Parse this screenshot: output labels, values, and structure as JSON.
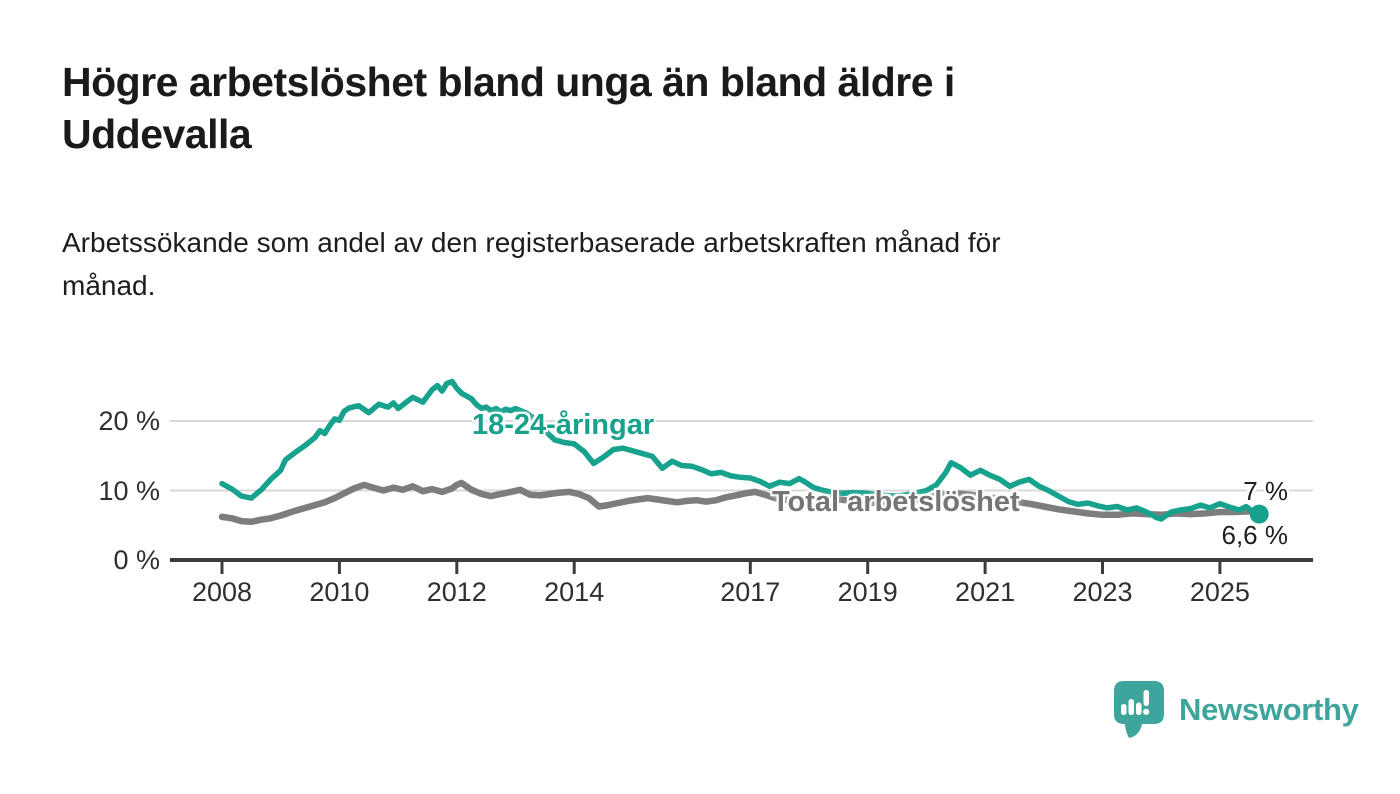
{
  "header": {
    "title": "Högre arbetslöshet bland unga än bland äldre i\nUddevalla",
    "subtitle": "Arbetssökande som andel av den registerbaserade arbetskraften månad för\nmånad."
  },
  "footer": {
    "brand": "Newsworthy",
    "logo_icon": "speech-bubble-bar-chart-icon"
  },
  "colors": {
    "background": "#ffffff",
    "accent_teal": "#17a28e",
    "line_gray": "#7d7d7d",
    "axis": "#3c3c3c",
    "gridline": "#d8d8d8",
    "logo_teal": "#3ea59d",
    "text": "#1a1a1a"
  },
  "chart_data": {
    "type": "line",
    "unit": "%",
    "x_axis": {
      "range": [
        2007.1,
        2026.6
      ],
      "ticks": [
        {
          "year": 2008,
          "label": "2008"
        },
        {
          "year": 2010,
          "label": "2010"
        },
        {
          "year": 2012,
          "label": "2012"
        },
        {
          "year": 2014,
          "label": "2014"
        },
        {
          "year": 2017,
          "label": "2017"
        },
        {
          "year": 2019,
          "label": "2019"
        },
        {
          "year": 2021,
          "label": "2021"
        },
        {
          "year": 2023,
          "label": "2023"
        },
        {
          "year": 2025,
          "label": "2025"
        }
      ]
    },
    "y_axis": {
      "range": [
        0,
        27
      ],
      "ticks": [
        {
          "value": 0,
          "label": "0 %"
        },
        {
          "value": 10,
          "label": "10 %"
        },
        {
          "value": 20,
          "label": "20 %"
        }
      ]
    },
    "grid": "horizontal",
    "legend": "inline-labels",
    "series": [
      {
        "id": "young",
        "name": "18-24-åringar",
        "color": "#17a28e",
        "end_label": "6,6 %",
        "end_value": 6.6,
        "points": [
          [
            2008.0,
            11.0
          ],
          [
            2008.17,
            10.2
          ],
          [
            2008.33,
            9.2
          ],
          [
            2008.5,
            8.9
          ],
          [
            2008.67,
            10.1
          ],
          [
            2008.83,
            11.6
          ],
          [
            2009.0,
            12.9
          ],
          [
            2009.08,
            14.4
          ],
          [
            2009.25,
            15.5
          ],
          [
            2009.42,
            16.5
          ],
          [
            2009.58,
            17.6
          ],
          [
            2009.67,
            18.6
          ],
          [
            2009.75,
            18.2
          ],
          [
            2009.83,
            19.3
          ],
          [
            2009.92,
            20.3
          ],
          [
            2010.0,
            20.1
          ],
          [
            2010.08,
            21.4
          ],
          [
            2010.17,
            21.9
          ],
          [
            2010.33,
            22.2
          ],
          [
            2010.5,
            21.2
          ],
          [
            2010.67,
            22.4
          ],
          [
            2010.83,
            22.0
          ],
          [
            2010.92,
            22.6
          ],
          [
            2011.0,
            21.8
          ],
          [
            2011.17,
            22.9
          ],
          [
            2011.25,
            23.4
          ],
          [
            2011.42,
            22.7
          ],
          [
            2011.5,
            23.6
          ],
          [
            2011.58,
            24.5
          ],
          [
            2011.67,
            25.1
          ],
          [
            2011.75,
            24.3
          ],
          [
            2011.83,
            25.4
          ],
          [
            2011.92,
            25.7
          ],
          [
            2012.0,
            24.7
          ],
          [
            2012.08,
            24.0
          ],
          [
            2012.25,
            23.2
          ],
          [
            2012.33,
            22.4
          ],
          [
            2012.42,
            21.8
          ],
          [
            2012.5,
            22.0
          ],
          [
            2012.58,
            21.5
          ],
          [
            2012.67,
            21.8
          ],
          [
            2012.75,
            21.3
          ],
          [
            2012.83,
            21.7
          ],
          [
            2012.92,
            21.5
          ],
          [
            2013.0,
            21.8
          ],
          [
            2013.17,
            21.2
          ],
          [
            2013.33,
            20.3
          ],
          [
            2013.5,
            18.6
          ],
          [
            2013.67,
            17.3
          ],
          [
            2013.83,
            16.9
          ],
          [
            2014.0,
            16.7
          ],
          [
            2014.17,
            15.6
          ],
          [
            2014.33,
            13.9
          ],
          [
            2014.5,
            14.8
          ],
          [
            2014.67,
            15.9
          ],
          [
            2014.83,
            16.1
          ],
          [
            2015.0,
            15.7
          ],
          [
            2015.17,
            15.3
          ],
          [
            2015.33,
            14.9
          ],
          [
            2015.5,
            13.2
          ],
          [
            2015.67,
            14.2
          ],
          [
            2015.83,
            13.6
          ],
          [
            2016.0,
            13.5
          ],
          [
            2016.17,
            13.0
          ],
          [
            2016.33,
            12.4
          ],
          [
            2016.5,
            12.6
          ],
          [
            2016.67,
            12.1
          ],
          [
            2016.83,
            11.9
          ],
          [
            2017.0,
            11.8
          ],
          [
            2017.17,
            11.3
          ],
          [
            2017.33,
            10.6
          ],
          [
            2017.5,
            11.2
          ],
          [
            2017.67,
            11.0
          ],
          [
            2017.83,
            11.7
          ],
          [
            2017.92,
            11.3
          ],
          [
            2018.08,
            10.4
          ],
          [
            2018.25,
            10.0
          ],
          [
            2018.42,
            9.7
          ],
          [
            2018.58,
            9.6
          ],
          [
            2018.75,
            9.7
          ],
          [
            2019.0,
            9.6
          ],
          [
            2019.25,
            9.3
          ],
          [
            2019.5,
            9.2
          ],
          [
            2019.75,
            9.5
          ],
          [
            2020.0,
            10.0
          ],
          [
            2020.17,
            10.8
          ],
          [
            2020.33,
            12.6
          ],
          [
            2020.42,
            14.0
          ],
          [
            2020.58,
            13.3
          ],
          [
            2020.75,
            12.2
          ],
          [
            2020.92,
            12.9
          ],
          [
            2021.08,
            12.2
          ],
          [
            2021.25,
            11.6
          ],
          [
            2021.42,
            10.6
          ],
          [
            2021.58,
            11.2
          ],
          [
            2021.75,
            11.6
          ],
          [
            2021.92,
            10.6
          ],
          [
            2022.08,
            10.0
          ],
          [
            2022.25,
            9.2
          ],
          [
            2022.42,
            8.4
          ],
          [
            2022.58,
            8.0
          ],
          [
            2022.75,
            8.2
          ],
          [
            2022.92,
            7.8
          ],
          [
            2023.08,
            7.5
          ],
          [
            2023.25,
            7.7
          ],
          [
            2023.42,
            7.2
          ],
          [
            2023.58,
            7.5
          ],
          [
            2023.75,
            6.9
          ],
          [
            2023.92,
            6.1
          ],
          [
            2024.0,
            5.9
          ],
          [
            2024.17,
            6.9
          ],
          [
            2024.33,
            7.2
          ],
          [
            2024.5,
            7.4
          ],
          [
            2024.67,
            7.9
          ],
          [
            2024.83,
            7.5
          ],
          [
            2025.0,
            8.1
          ],
          [
            2025.17,
            7.6
          ],
          [
            2025.33,
            7.2
          ],
          [
            2025.45,
            7.7
          ],
          [
            2025.58,
            6.8
          ],
          [
            2025.67,
            6.6
          ]
        ]
      },
      {
        "id": "total",
        "name": "Total arbetslöshet",
        "color": "#7d7d7d",
        "end_label": "7 %",
        "end_value": 7.0,
        "points": [
          [
            2008.0,
            6.2
          ],
          [
            2008.17,
            6.0
          ],
          [
            2008.33,
            5.6
          ],
          [
            2008.5,
            5.5
          ],
          [
            2008.67,
            5.8
          ],
          [
            2008.83,
            6.0
          ],
          [
            2009.0,
            6.4
          ],
          [
            2009.25,
            7.1
          ],
          [
            2009.5,
            7.7
          ],
          [
            2009.75,
            8.3
          ],
          [
            2009.92,
            8.9
          ],
          [
            2010.08,
            9.6
          ],
          [
            2010.25,
            10.3
          ],
          [
            2010.42,
            10.8
          ],
          [
            2010.58,
            10.4
          ],
          [
            2010.75,
            10.0
          ],
          [
            2010.92,
            10.4
          ],
          [
            2011.08,
            10.1
          ],
          [
            2011.25,
            10.6
          ],
          [
            2011.42,
            9.9
          ],
          [
            2011.58,
            10.2
          ],
          [
            2011.75,
            9.8
          ],
          [
            2011.92,
            10.3
          ],
          [
            2012.0,
            10.8
          ],
          [
            2012.08,
            11.1
          ],
          [
            2012.25,
            10.1
          ],
          [
            2012.42,
            9.5
          ],
          [
            2012.58,
            9.2
          ],
          [
            2012.75,
            9.5
          ],
          [
            2012.92,
            9.8
          ],
          [
            2013.08,
            10.1
          ],
          [
            2013.25,
            9.4
          ],
          [
            2013.42,
            9.3
          ],
          [
            2013.58,
            9.5
          ],
          [
            2013.75,
            9.7
          ],
          [
            2013.92,
            9.8
          ],
          [
            2014.08,
            9.5
          ],
          [
            2014.25,
            8.9
          ],
          [
            2014.42,
            7.7
          ],
          [
            2014.58,
            7.9
          ],
          [
            2014.75,
            8.2
          ],
          [
            2014.92,
            8.5
          ],
          [
            2015.08,
            8.7
          ],
          [
            2015.25,
            8.9
          ],
          [
            2015.42,
            8.7
          ],
          [
            2015.58,
            8.5
          ],
          [
            2015.75,
            8.3
          ],
          [
            2015.92,
            8.5
          ],
          [
            2016.08,
            8.6
          ],
          [
            2016.25,
            8.4
          ],
          [
            2016.42,
            8.6
          ],
          [
            2016.58,
            9.0
          ],
          [
            2016.75,
            9.3
          ],
          [
            2016.92,
            9.6
          ],
          [
            2017.08,
            9.8
          ],
          [
            2017.25,
            9.4
          ],
          [
            2017.42,
            8.9
          ],
          [
            2017.58,
            8.6
          ],
          [
            2017.75,
            8.8
          ],
          [
            2018.0,
            9.0
          ],
          [
            2018.25,
            8.9
          ],
          [
            2018.5,
            8.7
          ],
          [
            2018.75,
            8.5
          ],
          [
            2019.0,
            8.3
          ],
          [
            2019.25,
            8.1
          ],
          [
            2019.5,
            8.2
          ],
          [
            2019.75,
            8.5
          ],
          [
            2020.0,
            8.9
          ],
          [
            2020.25,
            9.4
          ],
          [
            2020.5,
            9.6
          ],
          [
            2020.75,
            9.4
          ],
          [
            2021.0,
            9.1
          ],
          [
            2021.25,
            8.8
          ],
          [
            2021.5,
            8.4
          ],
          [
            2021.75,
            8.1
          ],
          [
            2022.0,
            7.7
          ],
          [
            2022.25,
            7.3
          ],
          [
            2022.5,
            7.0
          ],
          [
            2022.75,
            6.7
          ],
          [
            2023.0,
            6.5
          ],
          [
            2023.25,
            6.5
          ],
          [
            2023.5,
            6.7
          ],
          [
            2023.75,
            6.6
          ],
          [
            2024.0,
            6.5
          ],
          [
            2024.25,
            6.7
          ],
          [
            2024.5,
            6.6
          ],
          [
            2024.75,
            6.7
          ],
          [
            2025.0,
            6.9
          ],
          [
            2025.25,
            6.9
          ],
          [
            2025.5,
            7.0
          ],
          [
            2025.67,
            7.0
          ]
        ]
      }
    ]
  }
}
